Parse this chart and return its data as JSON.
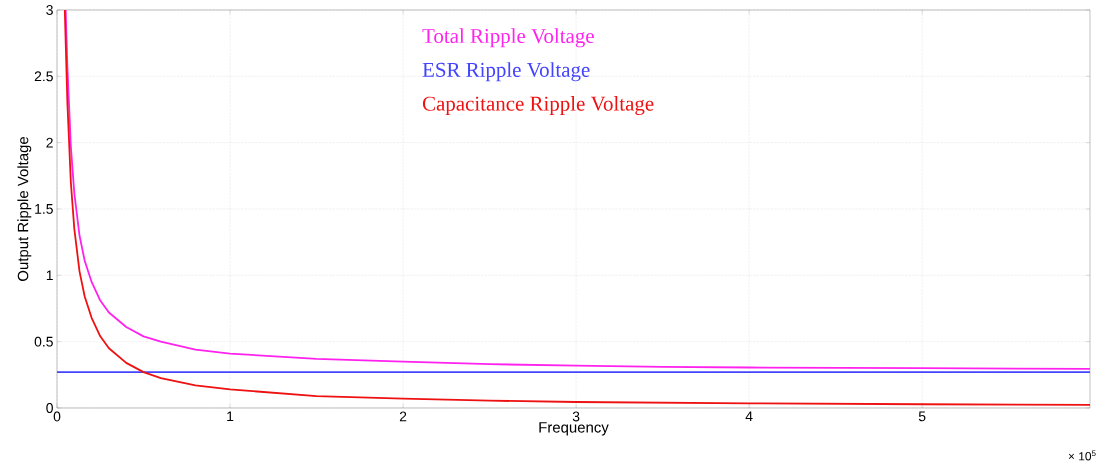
{
  "chart_data": {
    "type": "line",
    "xlabel": "Frequency",
    "ylabel": "Output Ripple Voltage",
    "annotations": [
      "× 10$^{5}$"
    ],
    "xlim": [
      0,
      5.97
    ],
    "ylim": [
      0,
      3
    ],
    "xticks": [
      0,
      1,
      2,
      3,
      4,
      5
    ],
    "yticks": [
      0,
      0.5,
      1,
      1.5,
      2,
      2.5,
      3
    ],
    "grid": true,
    "legend": "top",
    "marker": "none",
    "line_style": "solid",
    "series": [
      {
        "name": "Total Ripple Voltage",
        "color": "#ff22ee",
        "x": [
          0.05,
          0.06,
          0.08,
          0.1,
          0.13,
          0.16,
          0.2,
          0.25,
          0.3,
          0.4,
          0.5,
          0.6,
          0.8,
          1,
          1.5,
          2,
          2.5,
          3,
          3.5,
          4,
          5,
          5.97
        ],
        "values": [
          3.0,
          2.57,
          1.97,
          1.62,
          1.3,
          1.11,
          0.95,
          0.81,
          0.72,
          0.61,
          0.54,
          0.5,
          0.44,
          0.41,
          0.37,
          0.35,
          0.33,
          0.32,
          0.31,
          0.305,
          0.3,
          0.295
        ]
      },
      {
        "name": "ESR Ripple Voltage",
        "color": "#4444ff",
        "x": [
          0,
          5.97
        ],
        "values": [
          0.27,
          0.27
        ]
      },
      {
        "name": "Capacitance Ripple Voltage",
        "color": "#ee1111",
        "x": [
          0.045,
          0.06,
          0.08,
          0.1,
          0.13,
          0.16,
          0.2,
          0.25,
          0.3,
          0.4,
          0.5,
          0.6,
          0.8,
          1,
          1.5,
          2,
          2.5,
          3,
          3.5,
          4,
          5,
          5.97
        ],
        "values": [
          3.0,
          2.3,
          1.7,
          1.35,
          1.03,
          0.84,
          0.68,
          0.54,
          0.45,
          0.34,
          0.27,
          0.225,
          0.17,
          0.14,
          0.09,
          0.07,
          0.055,
          0.045,
          0.04,
          0.035,
          0.028,
          0.023
        ]
      }
    ]
  }
}
